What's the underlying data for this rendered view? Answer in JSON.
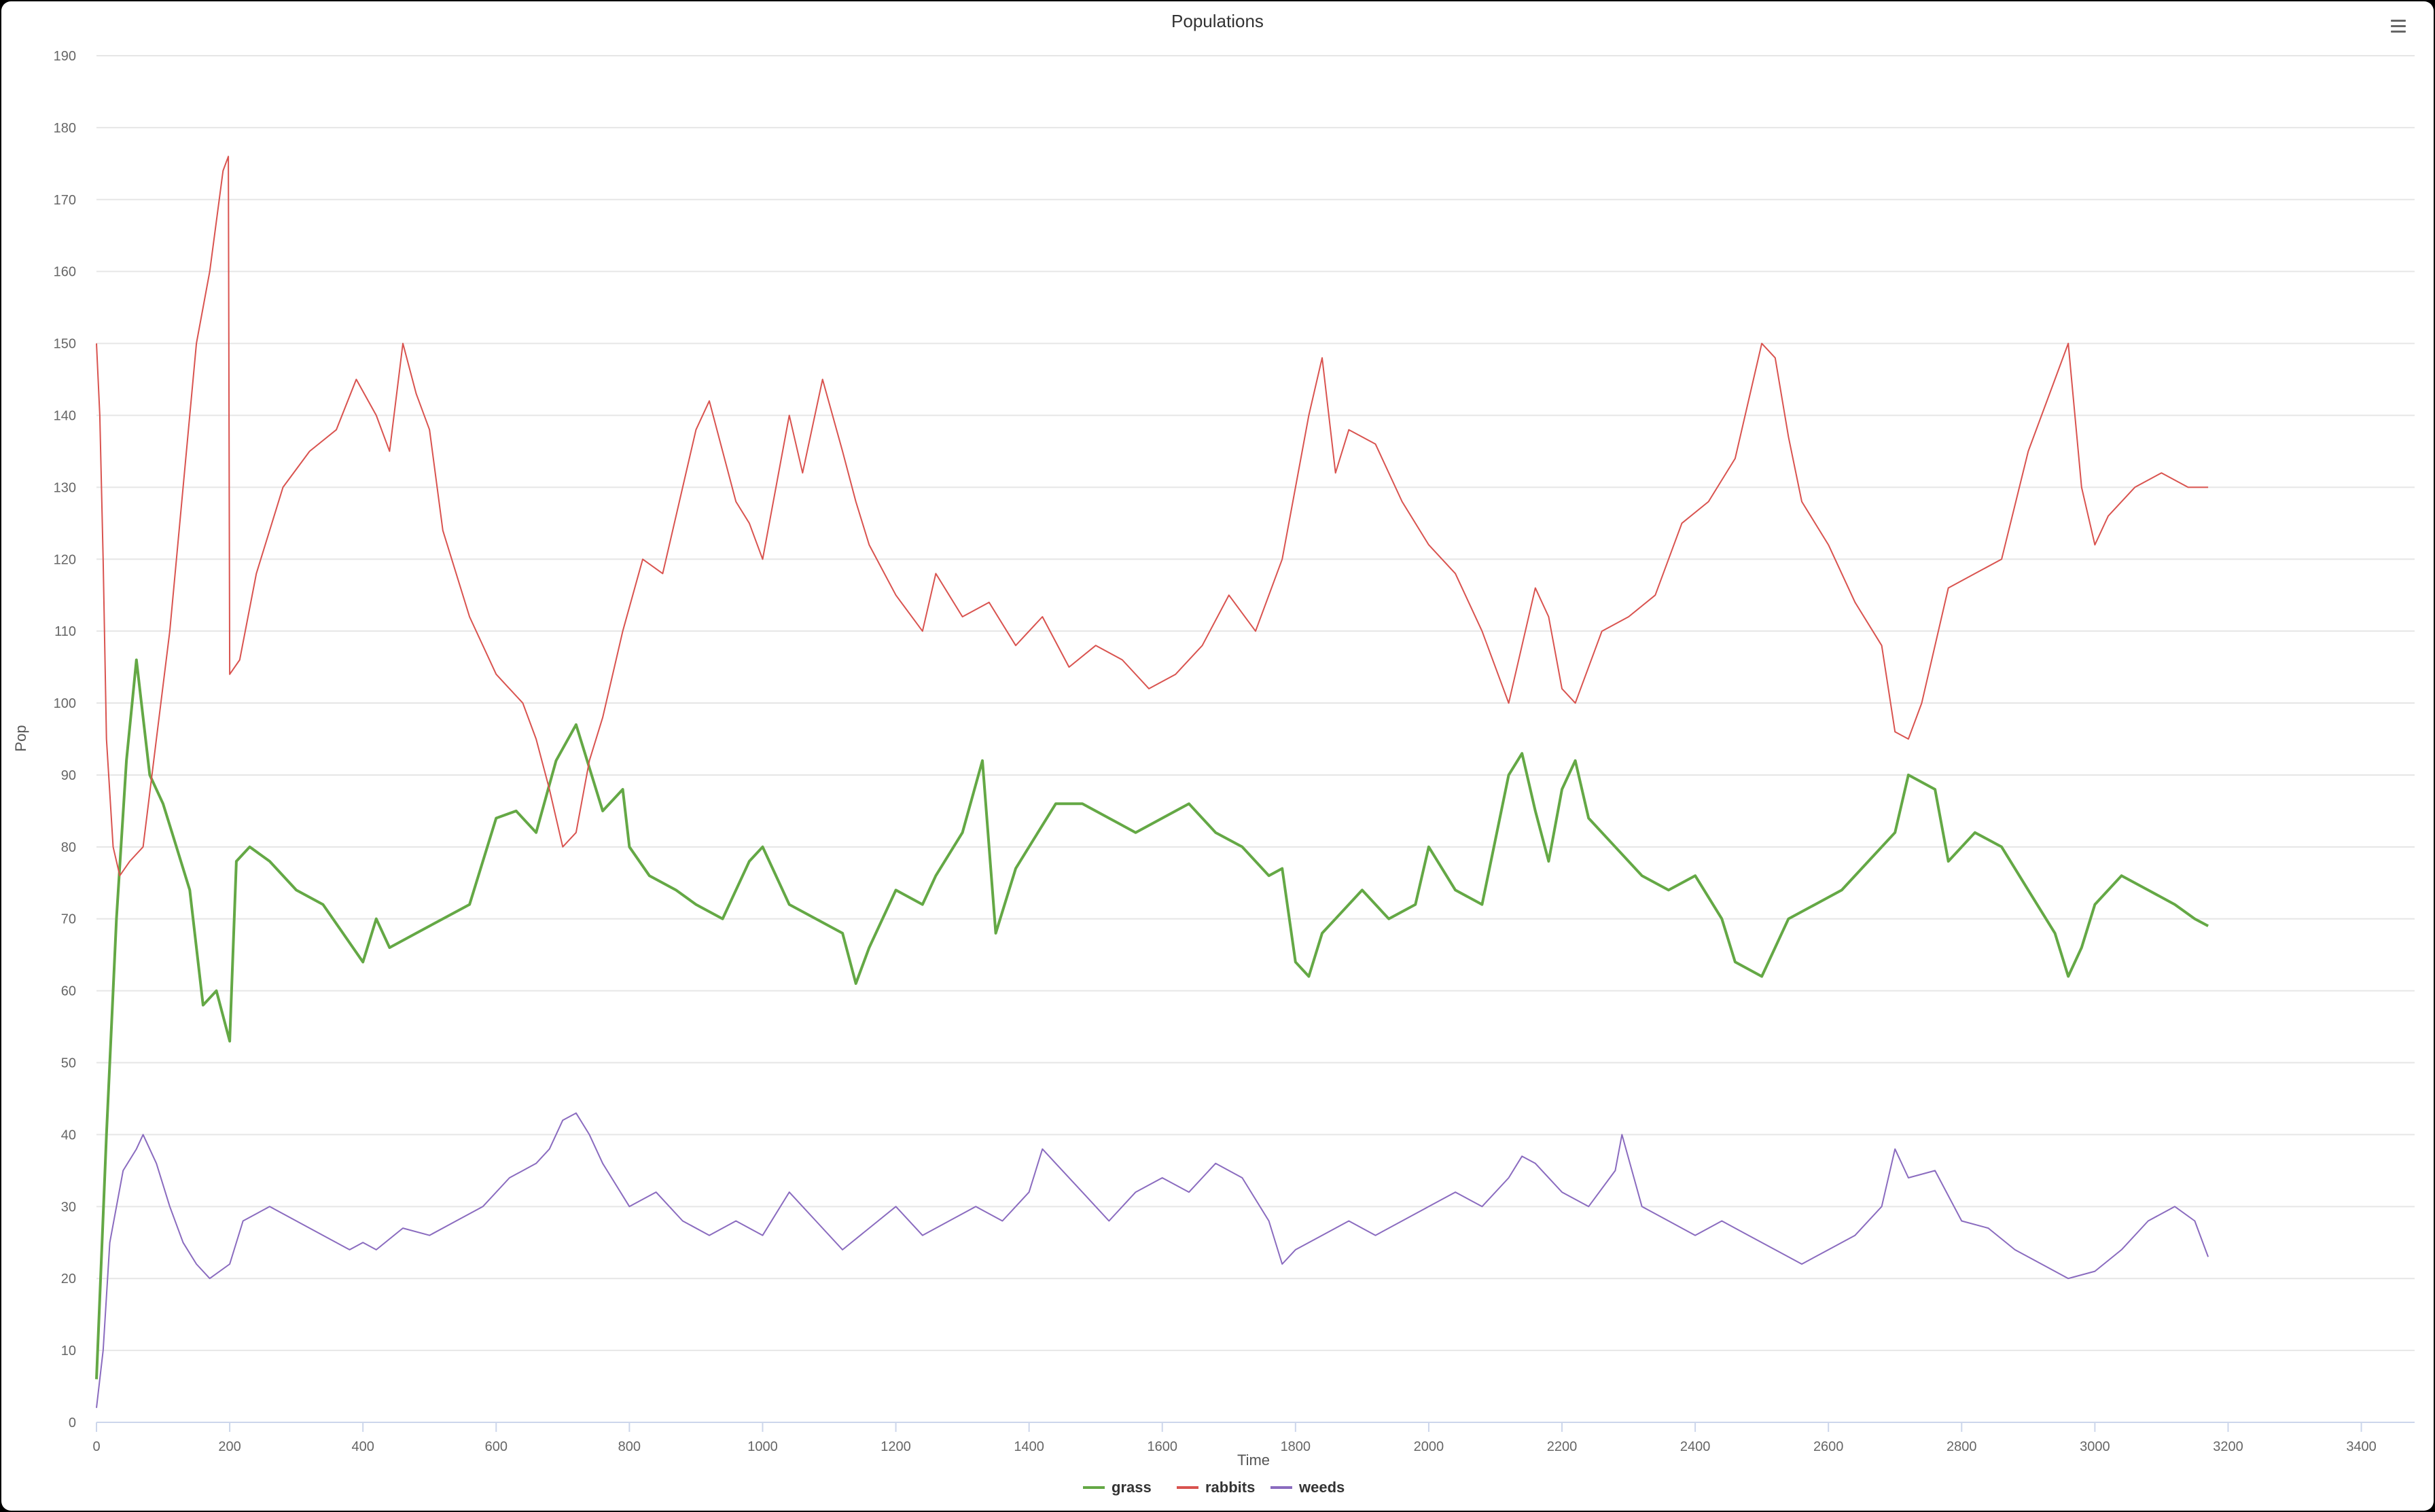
{
  "chart_data": {
    "type": "line",
    "title": "Populations",
    "xlabel": "Time",
    "ylabel": "Pop",
    "xlim": [
      0,
      3480
    ],
    "ylim": [
      0,
      190
    ],
    "x_ticks": [
      0,
      200,
      400,
      600,
      800,
      1000,
      1200,
      1400,
      1600,
      1800,
      2000,
      2200,
      2400,
      2600,
      2800,
      3000,
      3200,
      3400
    ],
    "y_ticks": [
      0,
      10,
      20,
      30,
      40,
      50,
      60,
      70,
      80,
      90,
      100,
      110,
      120,
      130,
      140,
      150,
      160,
      170,
      180,
      190
    ],
    "grid": true,
    "legend_position": "bottom-center",
    "series": [
      {
        "name": "grass",
        "color": "#64a845",
        "x": [
          0,
          15,
          30,
          45,
          60,
          70,
          80,
          100,
          120,
          140,
          160,
          180,
          200,
          210,
          230,
          260,
          300,
          340,
          370,
          400,
          420,
          440,
          480,
          520,
          560,
          600,
          630,
          660,
          690,
          720,
          760,
          790,
          800,
          830,
          870,
          900,
          940,
          980,
          1000,
          1040,
          1080,
          1120,
          1140,
          1160,
          1200,
          1240,
          1260,
          1300,
          1330,
          1350,
          1380,
          1400,
          1440,
          1480,
          1520,
          1560,
          1600,
          1640,
          1680,
          1720,
          1760,
          1780,
          1800,
          1820,
          1840,
          1860,
          1900,
          1940,
          1980,
          2000,
          2040,
          2080,
          2120,
          2140,
          2160,
          2180,
          2200,
          2220,
          2240,
          2280,
          2320,
          2360,
          2400,
          2440,
          2460,
          2500,
          2540,
          2580,
          2620,
          2660,
          2700,
          2720,
          2760,
          2780,
          2820,
          2860,
          2900,
          2940,
          2960,
          2980,
          3000,
          3040,
          3080,
          3120,
          3150,
          3170
        ],
        "y": [
          6,
          40,
          70,
          92,
          106,
          98,
          90,
          86,
          80,
          74,
          58,
          60,
          53,
          78,
          80,
          78,
          74,
          72,
          68,
          64,
          70,
          66,
          68,
          70,
          72,
          84,
          85,
          82,
          92,
          97,
          85,
          88,
          80,
          76,
          74,
          72,
          70,
          78,
          80,
          72,
          70,
          68,
          61,
          66,
          74,
          72,
          76,
          82,
          92,
          68,
          77,
          80,
          86,
          86,
          84,
          82,
          84,
          86,
          82,
          80,
          76,
          77,
          64,
          62,
          68,
          70,
          74,
          70,
          72,
          80,
          74,
          72,
          90,
          93,
          85,
          78,
          88,
          92,
          84,
          80,
          76,
          74,
          76,
          70,
          64,
          62,
          70,
          72,
          74,
          78,
          82,
          90,
          88,
          78,
          82,
          80,
          74,
          68,
          62,
          66,
          72,
          76,
          74,
          72,
          70,
          69
        ]
      },
      {
        "name": "rabbits",
        "color": "#d9534f",
        "x": [
          0,
          5,
          10,
          15,
          25,
          35,
          50,
          70,
          90,
          110,
          130,
          150,
          170,
          190,
          198,
          200,
          215,
          240,
          280,
          320,
          360,
          390,
          420,
          440,
          460,
          480,
          500,
          520,
          560,
          600,
          620,
          640,
          660,
          680,
          700,
          720,
          740,
          760,
          790,
          820,
          850,
          880,
          900,
          920,
          960,
          980,
          1000,
          1040,
          1060,
          1090,
          1120,
          1140,
          1160,
          1200,
          1240,
          1260,
          1300,
          1340,
          1380,
          1420,
          1460,
          1500,
          1540,
          1580,
          1620,
          1660,
          1700,
          1740,
          1780,
          1800,
          1820,
          1840,
          1860,
          1880,
          1920,
          1960,
          2000,
          2040,
          2080,
          2120,
          2140,
          2160,
          2180,
          2200,
          2220,
          2260,
          2300,
          2340,
          2380,
          2420,
          2460,
          2500,
          2520,
          2540,
          2560,
          2600,
          2640,
          2680,
          2700,
          2720,
          2740,
          2780,
          2820,
          2860,
          2900,
          2940,
          2960,
          2980,
          3000,
          3020,
          3060,
          3100,
          3140,
          3170
        ],
        "y": [
          150,
          140,
          120,
          95,
          80,
          76,
          78,
          80,
          95,
          110,
          130,
          150,
          160,
          174,
          176,
          104,
          106,
          118,
          130,
          135,
          138,
          145,
          140,
          135,
          150,
          143,
          138,
          124,
          112,
          104,
          102,
          100,
          95,
          88,
          80,
          82,
          92,
          98,
          110,
          120,
          118,
          130,
          138,
          142,
          128,
          125,
          120,
          140,
          132,
          145,
          135,
          128,
          122,
          115,
          110,
          118,
          112,
          114,
          108,
          112,
          105,
          108,
          106,
          102,
          104,
          108,
          115,
          110,
          120,
          130,
          140,
          148,
          132,
          138,
          136,
          128,
          122,
          118,
          110,
          100,
          108,
          116,
          112,
          102,
          100,
          110,
          112,
          115,
          125,
          128,
          134,
          150,
          148,
          137,
          128,
          122,
          114,
          108,
          96,
          95,
          100,
          116,
          118,
          120,
          135,
          145,
          150,
          130,
          122,
          126,
          130,
          132,
          130,
          130
        ]
      },
      {
        "name": "weeds",
        "color": "#8a6bbf",
        "x": [
          0,
          10,
          20,
          40,
          60,
          70,
          90,
          110,
          130,
          150,
          170,
          200,
          220,
          260,
          300,
          340,
          380,
          400,
          420,
          460,
          500,
          540,
          580,
          620,
          660,
          680,
          700,
          720,
          740,
          760,
          800,
          840,
          880,
          920,
          960,
          1000,
          1040,
          1080,
          1120,
          1160,
          1200,
          1240,
          1280,
          1320,
          1360,
          1400,
          1420,
          1440,
          1480,
          1520,
          1560,
          1600,
          1640,
          1680,
          1720,
          1760,
          1780,
          1800,
          1840,
          1880,
          1920,
          1960,
          2000,
          2040,
          2080,
          2120,
          2140,
          2160,
          2200,
          2240,
          2280,
          2290,
          2320,
          2360,
          2400,
          2440,
          2480,
          2520,
          2560,
          2600,
          2640,
          2680,
          2700,
          2720,
          2760,
          2800,
          2840,
          2880,
          2920,
          2960,
          3000,
          3040,
          3080,
          3120,
          3150,
          3170
        ],
        "y": [
          2,
          10,
          25,
          35,
          38,
          40,
          36,
          30,
          25,
          22,
          20,
          22,
          28,
          30,
          28,
          26,
          24,
          25,
          24,
          27,
          26,
          28,
          30,
          34,
          36,
          38,
          42,
          43,
          40,
          36,
          30,
          32,
          28,
          26,
          28,
          26,
          32,
          28,
          24,
          27,
          30,
          26,
          28,
          30,
          28,
          32,
          38,
          36,
          32,
          28,
          32,
          34,
          32,
          36,
          34,
          28,
          22,
          24,
          26,
          28,
          26,
          28,
          30,
          32,
          30,
          34,
          37,
          36,
          32,
          30,
          35,
          40,
          30,
          28,
          26,
          28,
          26,
          24,
          22,
          24,
          26,
          30,
          38,
          34,
          35,
          28,
          27,
          24,
          22,
          20,
          21,
          24,
          28,
          30,
          28,
          23
        ]
      }
    ]
  },
  "ui": {
    "menu_icon": "hamburger-menu-icon"
  }
}
